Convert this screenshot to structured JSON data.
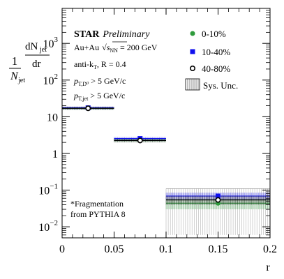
{
  "chart_data": {
    "type": "scatter",
    "title": "",
    "xlabel": "r",
    "ylabel": "1/N_jet dN_jet/dr",
    "y_log": true,
    "xlim": [
      0,
      0.2
    ],
    "ylim": [
      0.005,
      9000
    ],
    "x_ticks": [
      {
        "v": 0,
        "label": "0"
      },
      {
        "v": 0.05,
        "label": "0.05"
      },
      {
        "v": 0.1,
        "label": "0.1"
      },
      {
        "v": 0.15,
        "label": "0.15"
      },
      {
        "v": 0.2,
        "label": "0.2"
      }
    ],
    "y_ticks": [
      {
        "v": 0.01,
        "mant": "10",
        "exp": "−2"
      },
      {
        "v": 0.1,
        "mant": "10",
        "exp": "−1"
      },
      {
        "v": 1,
        "mant": "1",
        "exp": ""
      },
      {
        "v": 10,
        "mant": "10",
        "exp": ""
      },
      {
        "v": 100,
        "mant": "10",
        "exp": "2"
      },
      {
        "v": 1000,
        "mant": "10",
        "exp": "3"
      }
    ],
    "bins": [
      {
        "low": 0,
        "high": 0.05
      },
      {
        "low": 0.05,
        "high": 0.1
      },
      {
        "low": 0.1,
        "high": 0.2
      }
    ],
    "series": [
      {
        "name": "0-10%",
        "color": "#2e9b3c",
        "marker": "circle",
        "x": [
          0.025,
          0.075,
          0.15
        ],
        "y": [
          17,
          2.3,
          0.044
        ],
        "sys_low": [
          15.5,
          2.05,
          0.03
        ],
        "sys_high": [
          18.5,
          2.55,
          0.058
        ]
      },
      {
        "name": "10-40%",
        "color": "#1010ee",
        "marker": "square",
        "x": [
          0.025,
          0.075,
          0.15
        ],
        "y": [
          17.5,
          2.55,
          0.069
        ],
        "sys_low": [
          16.0,
          2.3,
          0.055
        ],
        "sys_high": [
          19.0,
          2.8,
          0.085
        ]
      },
      {
        "name": "40-80%",
        "color": "#000000",
        "marker": "open-circle",
        "x": [
          0.025,
          0.075,
          0.15
        ],
        "y": [
          17,
          2.25,
          0.054
        ],
        "sys_low": [
          15.5,
          2.0,
          0.04
        ],
        "sys_high": [
          18.5,
          2.5,
          0.07
        ]
      }
    ],
    "sys_hatch_regions": [
      {
        "x0": 0.1,
        "x1": 0.2,
        "y0": 0.006,
        "y1": 0.11
      }
    ],
    "legend_placement": "top-right",
    "legend_sys_label": "Sys. Unc.",
    "annotations": {
      "star": "STAR",
      "preliminary": "Preliminary",
      "system": "Au+Au",
      "sqrt": "√",
      "s_sym": "s",
      "nn": "NN",
      "energy": " = 200 GeV",
      "algo_pre": "anti-k",
      "algo_sub": "T",
      "algo_post": ", R = 0.4",
      "pt_sym": "p",
      "cut1_sub": "T,D⁰",
      "cut1_val": " > 5 GeV/c",
      "cut2_sub": "T,jet",
      "cut2_val": " > 5 GeV/c",
      "frag_line1": "*Fragmentation",
      "frag_line2": "from PYTHIA 8"
    },
    "ylabel_parts": {
      "one": "1",
      "N": "N",
      "jet": "jet",
      "dN": "dN",
      "dr": "dr"
    }
  }
}
